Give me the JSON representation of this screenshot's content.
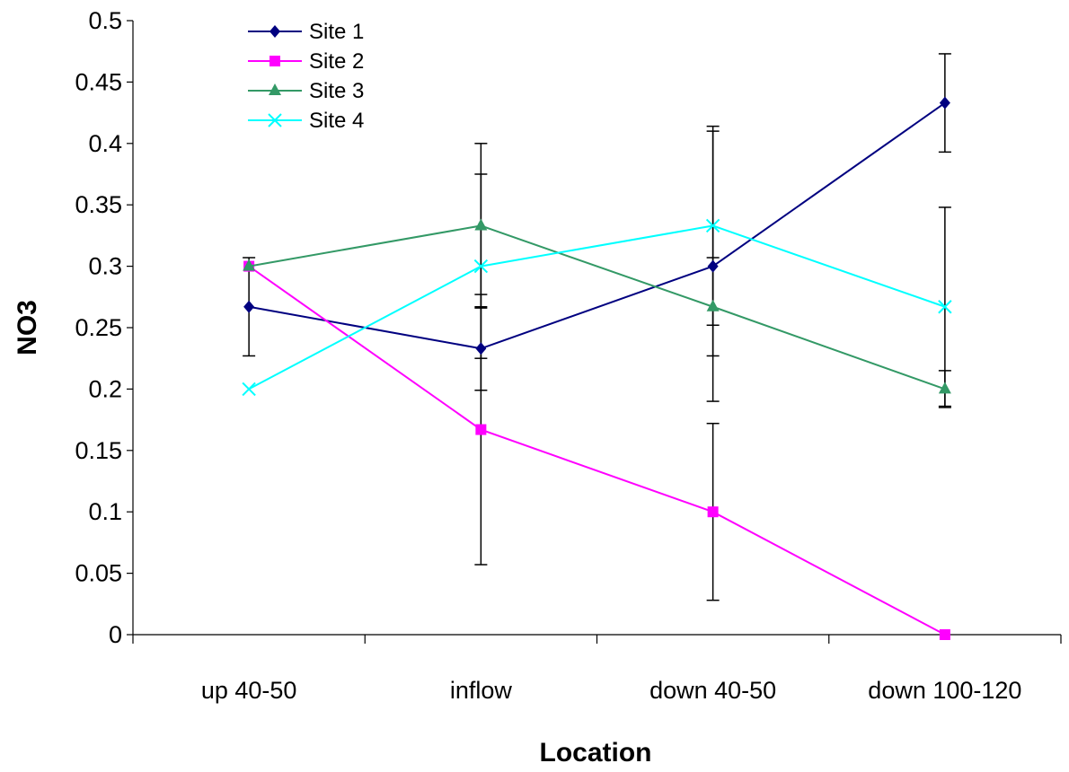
{
  "chart_data": {
    "type": "line",
    "title": "",
    "xlabel": "Location",
    "ylabel": "NO3",
    "categories": [
      "up 40-50",
      "inflow",
      "down 40-50",
      "down 100-120"
    ],
    "ylim": [
      0,
      0.5
    ],
    "yticks": [
      "0",
      "0.05",
      "0.1",
      "0.15",
      "0.2",
      "0.25",
      "0.3",
      "0.35",
      "0.4",
      "0.45",
      "0.5"
    ],
    "grid": false,
    "legend_position": "top-left",
    "series": [
      {
        "name": "Site 1",
        "color": "#000080",
        "marker": "diamond",
        "values": [
          0.267,
          0.233,
          0.3,
          0.433
        ],
        "err": [
          0.04,
          0.034,
          0.11,
          0.04
        ]
      },
      {
        "name": "Site 2",
        "color": "#ff00ff",
        "marker": "square",
        "values": [
          0.3,
          0.167,
          0.1,
          0.0
        ],
        "err": [
          0,
          0.11,
          0.072,
          0
        ]
      },
      {
        "name": "Site 3",
        "color": "#339966",
        "marker": "triangle",
        "values": [
          0.3,
          0.333,
          0.267,
          0.2
        ],
        "err": [
          0,
          0.067,
          0.04,
          0.015
        ]
      },
      {
        "name": "Site 4",
        "color": "#00ffff",
        "marker": "x",
        "values": [
          0.2,
          0.3,
          0.333,
          0.267
        ],
        "err": [
          0,
          0.075,
          0.081,
          0.081
        ]
      }
    ]
  }
}
